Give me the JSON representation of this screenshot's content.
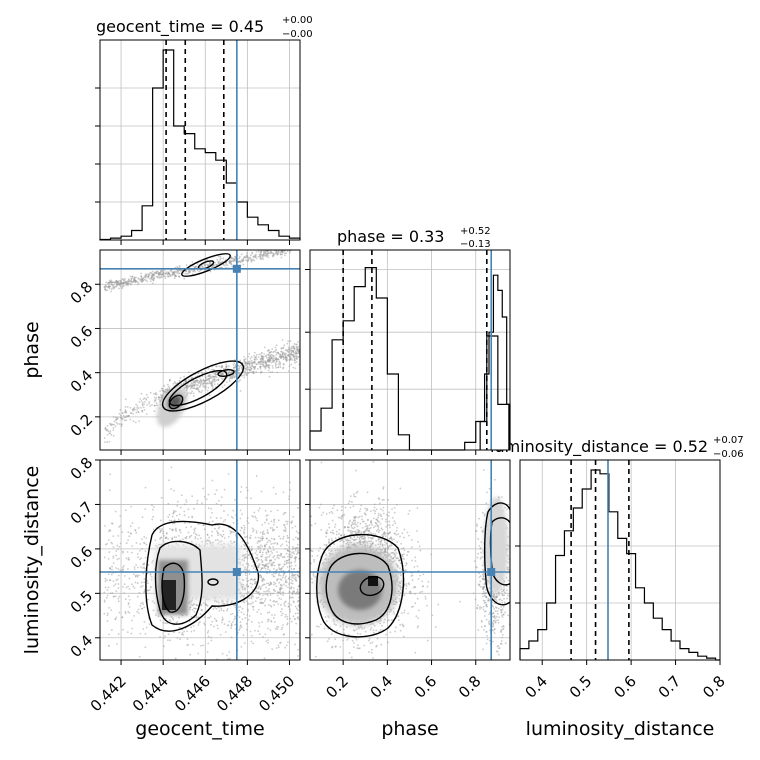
{
  "chart_data": {
    "type": "corner",
    "parameters": [
      "geocent_time",
      "phase",
      "luminosity_distance"
    ],
    "truths": {
      "geocent_time": 0.4475,
      "phase": 0.87,
      "luminosity_distance": 0.548
    },
    "colors": {
      "truth": "#4682b4",
      "hist": "#000000",
      "grid": "#c0c0c0",
      "points": "#b0b0b0"
    },
    "axes": {
      "geocent_time": {
        "range": [
          0.441,
          0.4505
        ],
        "ticks": [
          "0.442",
          "0.444",
          "0.446",
          "0.448",
          "0.450"
        ],
        "tickvals": [
          0.442,
          0.444,
          0.446,
          0.448,
          0.45
        ]
      },
      "phase": {
        "range": [
          0.05,
          0.955
        ],
        "ticks": [
          "0.2",
          "0.4",
          "0.6",
          "0.8"
        ],
        "tickvals": [
          0.2,
          0.4,
          0.6,
          0.8
        ]
      },
      "luminosity_distance": {
        "range": [
          0.35,
          0.8
        ],
        "ticks": [
          "0.4",
          "0.5",
          "0.6",
          "0.7",
          "0.8"
        ],
        "tickvals": [
          0.4,
          0.5,
          0.6,
          0.7,
          0.8
        ]
      }
    },
    "titles": [
      {
        "param": "geocent_time",
        "label": "geocent_time = 0.45",
        "plus": "+0.00",
        "minus": "−0.00"
      },
      {
        "param": "phase",
        "label": "phase = 0.33",
        "plus": "+0.52",
        "minus": "−0.13"
      },
      {
        "param": "luminosity_distance",
        "label": "luminosity_distance = 0.52",
        "plus": "+0.07",
        "minus": "−0.06"
      }
    ],
    "histograms": {
      "geocent_time": {
        "quantiles": [
          0.44414,
          0.44505,
          0.44688
        ],
        "bin_edges": [
          0.441,
          0.4415,
          0.442,
          0.4425,
          0.443,
          0.4435,
          0.444,
          0.4445,
          0.445,
          0.4455,
          0.446,
          0.4465,
          0.447,
          0.4475,
          0.448,
          0.4485,
          0.449,
          0.4495,
          0.45,
          0.4505
        ],
        "counts": [
          0.003,
          0.01,
          0.02,
          0.05,
          0.18,
          0.8,
          1.0,
          0.6,
          0.56,
          0.48,
          0.46,
          0.42,
          0.3,
          0.2,
          0.12,
          0.08,
          0.05,
          0.02,
          0.01
        ]
      },
      "phase": {
        "quantiles": [
          0.2,
          0.33,
          0.85
        ],
        "bin_edges": [
          0.05,
          0.1,
          0.15,
          0.2,
          0.25,
          0.3,
          0.35,
          0.4,
          0.45,
          0.5,
          0.55,
          0.6,
          0.65,
          0.7,
          0.75,
          0.8,
          0.85,
          0.9,
          0.95
        ],
        "counts": [
          0.1,
          0.22,
          0.58,
          0.68,
          0.86,
          0.96,
          0.8,
          0.4,
          0.08,
          0.0,
          0.0,
          0.0,
          0.0,
          0.0,
          0.04,
          0.15,
          0.6,
          0.24
        ],
        "extra_edges": [
          0.82,
          0.84,
          0.86,
          0.88,
          0.9,
          0.92,
          0.94,
          0.955
        ],
        "extra_counts": [
          0.15,
          0.4,
          0.62,
          0.92,
          0.84,
          0.7,
          0.24
        ]
      },
      "luminosity_distance": {
        "quantiles": [
          0.465,
          0.52,
          0.595
        ],
        "bin_edges": [
          0.35,
          0.37,
          0.39,
          0.41,
          0.43,
          0.45,
          0.47,
          0.49,
          0.51,
          0.53,
          0.55,
          0.57,
          0.59,
          0.61,
          0.63,
          0.65,
          0.67,
          0.69,
          0.71,
          0.73,
          0.75,
          0.77,
          0.79,
          0.8
        ],
        "counts": [
          0.06,
          0.1,
          0.16,
          0.3,
          0.55,
          0.68,
          0.8,
          0.9,
          1.0,
          0.98,
          0.78,
          0.64,
          0.56,
          0.38,
          0.3,
          0.22,
          0.16,
          0.1,
          0.06,
          0.04,
          0.02,
          0.01,
          0.0
        ]
      }
    }
  }
}
